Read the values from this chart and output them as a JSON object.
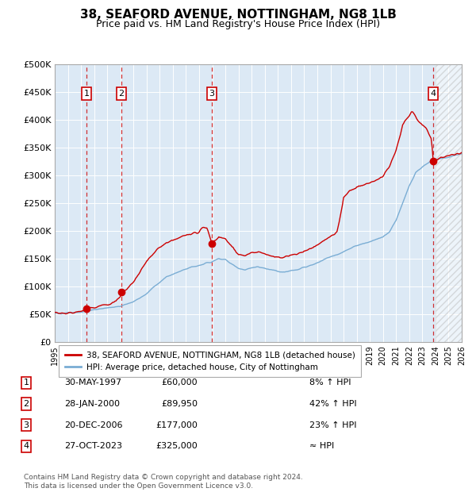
{
  "title": "38, SEAFORD AVENUE, NOTTINGHAM, NG8 1LB",
  "subtitle": "Price paid vs. HM Land Registry's House Price Index (HPI)",
  "title_fontsize": 11,
  "subtitle_fontsize": 9,
  "ylim": [
    0,
    500000
  ],
  "yticks": [
    0,
    50000,
    100000,
    150000,
    200000,
    250000,
    300000,
    350000,
    400000,
    450000,
    500000
  ],
  "ytick_labels": [
    "£0",
    "£50K",
    "£100K",
    "£150K",
    "£200K",
    "£250K",
    "£300K",
    "£350K",
    "£400K",
    "£450K",
    "£500K"
  ],
  "x_start_year": 1995,
  "x_end_year": 2026,
  "xtick_years": [
    1995,
    1996,
    1997,
    1998,
    1999,
    2000,
    2001,
    2002,
    2003,
    2004,
    2005,
    2006,
    2007,
    2008,
    2009,
    2010,
    2011,
    2012,
    2013,
    2014,
    2015,
    2016,
    2017,
    2018,
    2019,
    2020,
    2021,
    2022,
    2023,
    2024,
    2025,
    2026
  ],
  "hpi_color": "#7aadd4",
  "price_color": "#cc0000",
  "marker_color": "#cc0000",
  "bg_color": "#dce9f5",
  "grid_color": "#ffffff",
  "sale_dashed_color": "#cc0000",
  "hatch_bg": "#e8e8e8",
  "sale_points": [
    {
      "label": "1",
      "year": 1997.41,
      "price": 60000
    },
    {
      "label": "2",
      "year": 2000.08,
      "price": 89950
    },
    {
      "label": "3",
      "year": 2006.97,
      "price": 177000
    },
    {
      "label": "4",
      "year": 2023.83,
      "price": 325000
    }
  ],
  "legend_entries": [
    "38, SEAFORD AVENUE, NOTTINGHAM, NG8 1LB (detached house)",
    "HPI: Average price, detached house, City of Nottingham"
  ],
  "table_data": [
    {
      "num": "1",
      "date": "30-MAY-1997",
      "price": "£60,000",
      "note": "8% ↑ HPI"
    },
    {
      "num": "2",
      "date": "28-JAN-2000",
      "price": "£89,950",
      "note": "42% ↑ HPI"
    },
    {
      "num": "3",
      "date": "20-DEC-2006",
      "price": "£177,000",
      "note": "23% ↑ HPI"
    },
    {
      "num": "4",
      "date": "27-OCT-2023",
      "price": "£325,000",
      "note": "≈ HPI"
    }
  ],
  "footnote": "Contains HM Land Registry data © Crown copyright and database right 2024.\nThis data is licensed under the Open Government Licence v3.0."
}
